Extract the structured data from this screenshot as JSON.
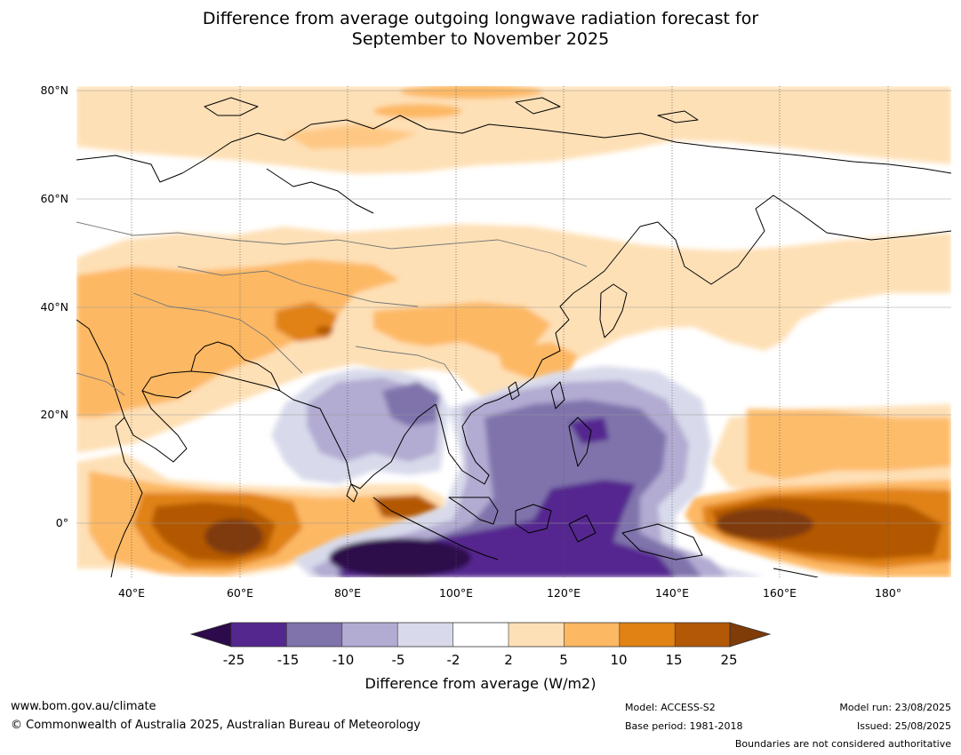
{
  "title_line1": "Difference from average outgoing longwave radiation forecast for",
  "title_line2": "September to November 2025",
  "lat_labels": [
    "80°N",
    "60°N",
    "40°N",
    "20°N",
    "0°"
  ],
  "lon_labels": [
    "40°E",
    "60°E",
    "80°E",
    "100°E",
    "120°E",
    "140°E",
    "160°E",
    "180°"
  ],
  "colorbar": {
    "ticks": [
      "-25",
      "-15",
      "-10",
      "-5",
      "-2",
      "2",
      "5",
      "10",
      "15",
      "25"
    ],
    "title": "Difference from average (W/m2)",
    "colors": [
      "#2d0a4b",
      "#54278f",
      "#8073ac",
      "#b2abd2",
      "#d8daeb",
      "#ffffff",
      "#fee0b6",
      "#fdb863",
      "#e08214",
      "#b35806",
      "#7f3b08"
    ]
  },
  "footer": {
    "website": "www.bom.gov.au/climate",
    "copyright": "© Commonwealth of Australia 2025, Australian Bureau of Meteorology",
    "model": "Model: ACCESS-S2",
    "base_period": "Base period: 1981-2018",
    "model_run": "Model run: 23/08/2025",
    "issued": "Issued: 25/08/2025",
    "boundaries_note": "Boundaries are not considered authoritative"
  }
}
